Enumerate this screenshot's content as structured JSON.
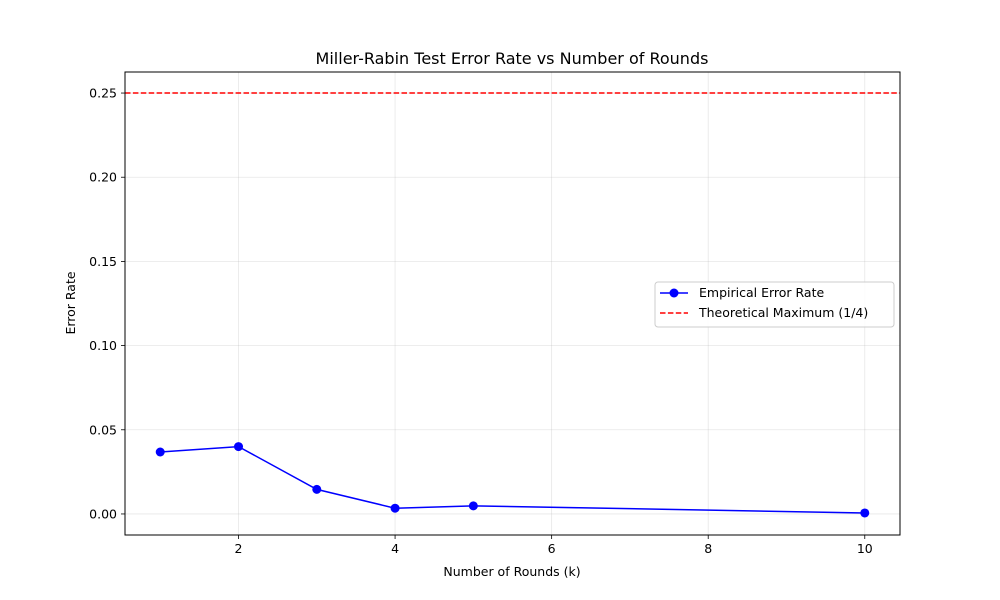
{
  "chart_data": {
    "type": "line",
    "title": "Miller-Rabin Test Error Rate vs Number of Rounds",
    "xlabel": "Number of Rounds (k)",
    "ylabel": "Error Rate",
    "xlim": [
      0.55,
      10.45
    ],
    "ylim": [
      -0.0125,
      0.2625
    ],
    "xticks": [
      2,
      4,
      6,
      8,
      10
    ],
    "xtick_labels": [
      "2",
      "4",
      "6",
      "8",
      "10"
    ],
    "yticks": [
      0.0,
      0.05,
      0.1,
      0.15,
      0.2,
      0.25
    ],
    "ytick_labels": [
      "0.00",
      "0.05",
      "0.10",
      "0.15",
      "0.20",
      "0.25"
    ],
    "grid": true,
    "legend_position": "center-right",
    "series": [
      {
        "name": "Empirical Error Rate",
        "style": "solid-with-markers",
        "color": "#0000ff",
        "x": [
          1,
          2,
          3,
          4,
          5,
          10
        ],
        "y": [
          0.0368,
          0.04,
          0.0146,
          0.0034,
          0.0048,
          0.0006
        ]
      },
      {
        "name": "Theoretical Maximum (1/4)",
        "style": "dashed-horizontal",
        "color": "#ff0000",
        "y": 0.25
      }
    ]
  }
}
